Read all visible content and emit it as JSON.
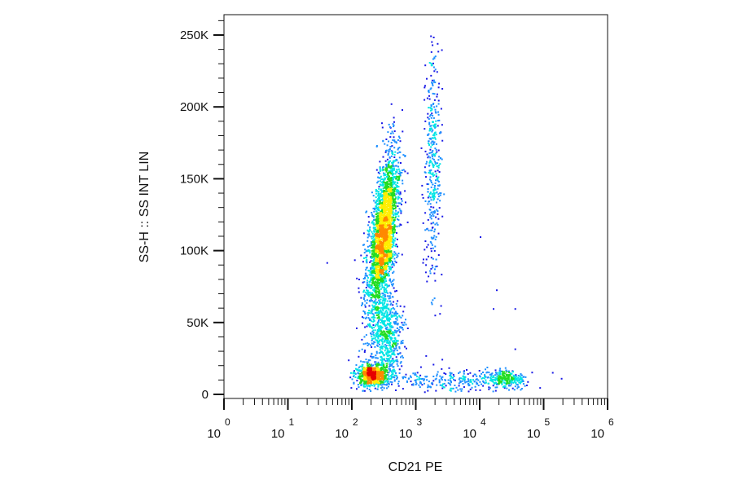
{
  "chart_data": {
    "type": "scatter",
    "subtype": "density-dot-plot",
    "xlabel": "CD21 PE",
    "ylabel": "SS-H :: SS INT LIN",
    "x_scale": "log",
    "xlim": [
      1,
      1000000
    ],
    "x_ticks": [
      {
        "base": "10",
        "exp": "0",
        "value": 1
      },
      {
        "base": "10",
        "exp": "1",
        "value": 10
      },
      {
        "base": "10",
        "exp": "2",
        "value": 100
      },
      {
        "base": "10",
        "exp": "3",
        "value": 1000
      },
      {
        "base": "10",
        "exp": "4",
        "value": 10000
      },
      {
        "base": "10",
        "exp": "5",
        "value": 100000
      },
      {
        "base": "10",
        "exp": "6",
        "value": 1000000
      }
    ],
    "y_scale": "linear",
    "ylim": [
      0,
      262144
    ],
    "y_ticks": [
      {
        "label": "0",
        "value": 0
      },
      {
        "label": "50K",
        "value": 50000
      },
      {
        "label": "100K",
        "value": 100000
      },
      {
        "label": "150K",
        "value": 150000
      },
      {
        "label": "200K",
        "value": 200000
      },
      {
        "label": "250K",
        "value": 250000
      }
    ],
    "grid": false,
    "colormap": [
      "#1a1ae6",
      "#1e90ff",
      "#00e5e5",
      "#22dd22",
      "#ffee00",
      "#ff8800",
      "#e60000"
    ],
    "populations": [
      {
        "x_center": 300,
        "x_spread_decades": 0.1,
        "y_center": 110000,
        "y_spread": 28000,
        "weight": 0.55
      },
      {
        "x_center": 200,
        "x_spread_decades": 0.12,
        "y_center": 14000,
        "y_spread": 4000,
        "weight": 0.15
      },
      {
        "x_center": 350,
        "x_spread_decades": 0.12,
        "y_center": 40000,
        "y_spread": 15000,
        "weight": 0.12
      },
      {
        "x_center": 1800,
        "x_spread_decades": 0.07,
        "y_center": 160000,
        "y_spread": 40000,
        "weight": 0.08
      },
      {
        "x_center": 25000,
        "x_spread_decades": 0.15,
        "y_center": 11000,
        "y_spread": 3000,
        "weight": 0.05
      },
      {
        "x_center": 3000,
        "x_spread_decades": 0.5,
        "y_center": 10000,
        "y_spread": 4000,
        "weight": 0.05
      }
    ],
    "outliers": [
      {
        "x": 10000,
        "y": 110000
      },
      {
        "x": 18000,
        "y": 73000
      },
      {
        "x": 16000,
        "y": 60000
      },
      {
        "x": 35000,
        "y": 60000
      },
      {
        "x": 35000,
        "y": 32000
      },
      {
        "x": 40,
        "y": 92000
      },
      {
        "x": 1900,
        "y": 235000
      }
    ]
  }
}
